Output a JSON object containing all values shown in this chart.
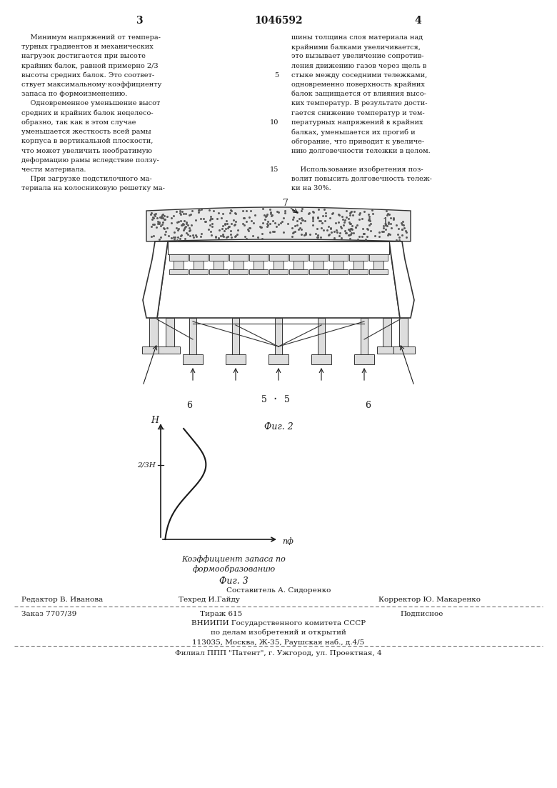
{
  "page_number_left": "3",
  "page_number_center": "1046592",
  "page_number_right": "4",
  "col1_text": [
    "    Минимум напряжений от темпера-",
    "турных градиентов и механических",
    "нагрузок достигается при высоте",
    "крайних балок, равной примерно 2/3",
    "высоты средних балок. Это соответ-",
    "ствует максимальному·коэффициенту",
    "запаса по формоизменению.",
    "    Одновременное уменьшение высот",
    "средних и крайних балок нецелесо-",
    "образно, так как в этом случае",
    "уменьшается жесткость всей рамы",
    "корпуса в вертикальной плоскости,",
    "что может увеличить необратимую",
    "деформацию рамы вследствие ползу-",
    "чести материала.",
    "    При загрузке подстилочного ма-",
    "териала на колосниковую решетку ма-"
  ],
  "col2_text": [
    "шины толщина слоя материала над",
    "крайними балками увеличивается,",
    "это вызывает увеличение сопротив-",
    "ления движению газов через щель в",
    "стыке между соседними тележками,",
    "одновременно поверхность крайних",
    "балок защищается от влияния высо-",
    "ких температур. В результате дости-",
    "гается снижение температур и тем-",
    "пературных напряжений в крайних",
    "балках, уменьшается их прогиб и",
    "обгорание, что приводит к увеличе-",
    "нию долговечности тележки в целом.",
    "",
    "    Использование изобретения поз-",
    "волит повысить долговечность тележ-",
    "ки на 30%."
  ],
  "fig2_label": "Фиг. 2",
  "fig3_label": "Фиг. 3",
  "graph_ylabel": "H",
  "graph_xlabel": "пф",
  "graph_ytick_label": "2/3Н",
  "graph_xlabel_full": "Коэффициент запаса по",
  "graph_xlabel_full2": "формообразованию",
  "editor_line1": "Редактор В. Иванова",
  "editor_line2": "Техред И.Гайду",
  "editor_line3": "Корректор Ю. Макаренко",
  "composer_line": "Составитель А. Сидоренко",
  "order_part1": "Заказ 7707/39",
  "order_part2": "Тираж 615",
  "order_part3": "Подписное",
  "org_line1": "ВНИИПИ Государственного комитета СССР",
  "org_line2": "по делам изобретений и открытий",
  "org_line3": "113035, Москва, Ж-35, Раушская наб., д.4/5",
  "branch_line": "Филиал ППП \"Патент\", г. Ужгород, ул. Проектная, 4",
  "bg_color": "#ffffff",
  "text_color": "#1a1a1a"
}
